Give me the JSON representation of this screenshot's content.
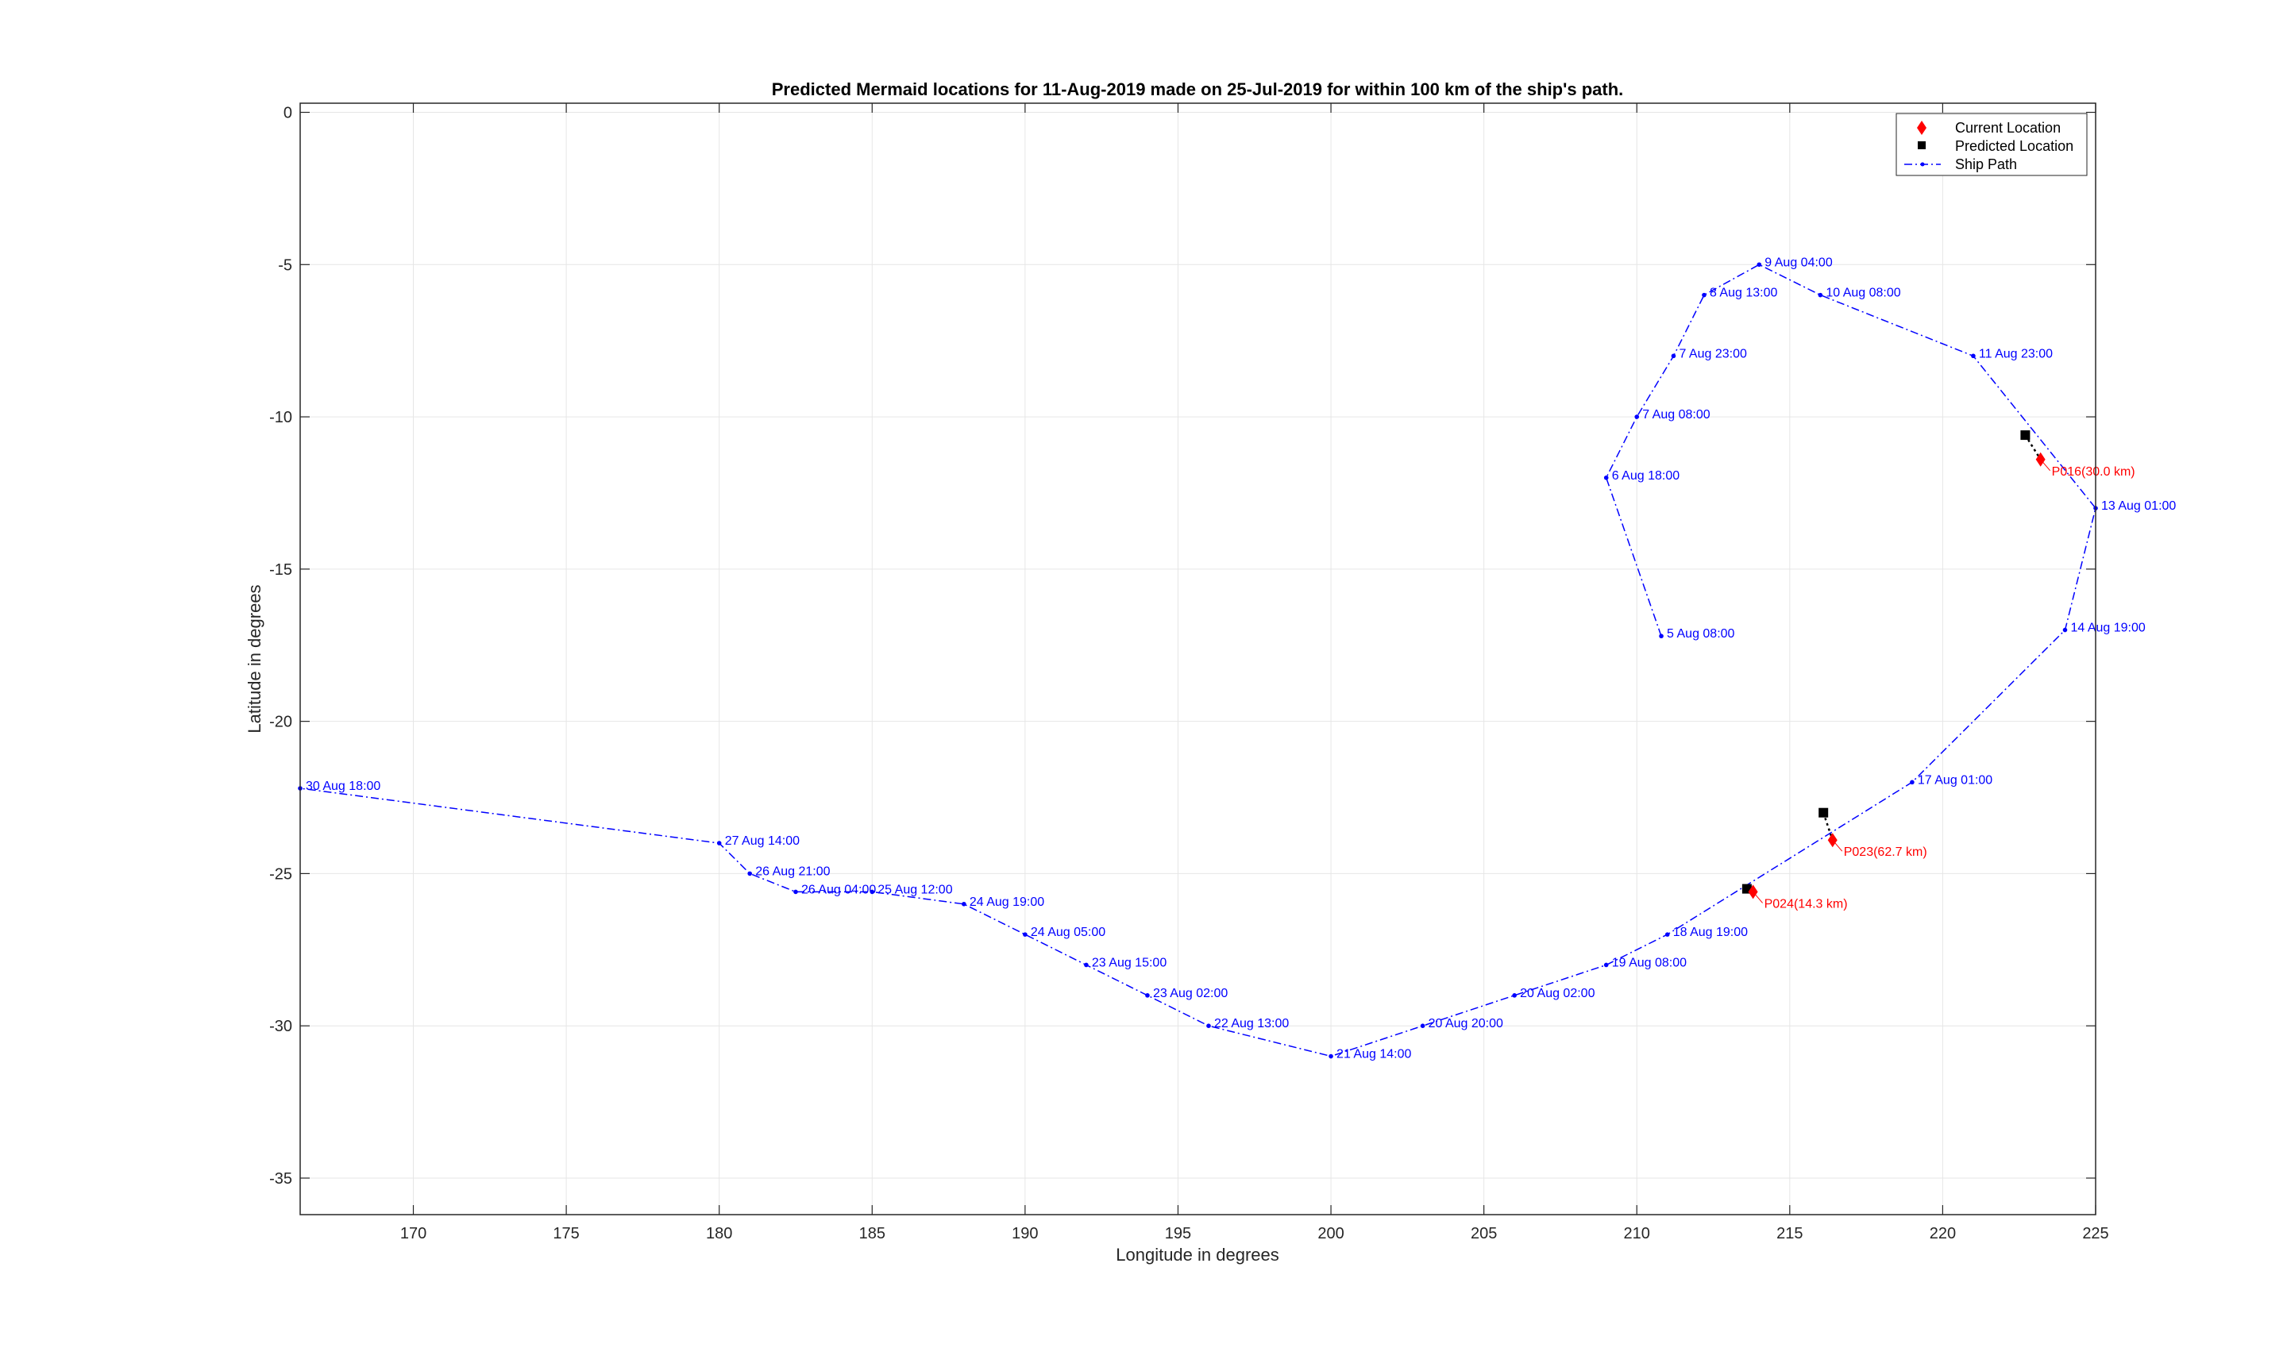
{
  "chart_data": {
    "type": "scatter",
    "title": "Predicted Mermaid locations for 11-Aug-2019 made on 25-Jul-2019 for within 100 km of the ship's path.",
    "xlabel": "Longitude in degrees",
    "ylabel": "Latitude in degrees",
    "xlim": [
      166.3,
      225
    ],
    "ylim": [
      -36.2,
      0.3
    ],
    "xticks": [
      170,
      175,
      180,
      185,
      190,
      195,
      200,
      205,
      210,
      215,
      220,
      225
    ],
    "yticks": [
      0,
      -5,
      -10,
      -15,
      -20,
      -25,
      -30,
      -35
    ],
    "grid": true,
    "legend_position": "top-right",
    "legend": [
      {
        "label": "Current Location",
        "marker": "diamond",
        "color": "#ff0000"
      },
      {
        "label": "Predicted Location",
        "marker": "square",
        "color": "#000000"
      },
      {
        "label": "Ship Path",
        "marker": "dot-dash-line",
        "color": "#0000ff"
      }
    ],
    "colors": {
      "ship_path": "#0000ff",
      "current": "#ff0000",
      "predicted": "#000000",
      "grid": "#e6e6e6"
    },
    "ship_path": [
      {
        "x": 210.8,
        "y": -17.2,
        "label": "5 Aug 08:00"
      },
      {
        "x": 209.0,
        "y": -12.0,
        "label": "6 Aug 18:00"
      },
      {
        "x": 210.0,
        "y": -10.0,
        "label": "7 Aug 08:00"
      },
      {
        "x": 211.2,
        "y": -8.0,
        "label": "7 Aug 23:00"
      },
      {
        "x": 212.2,
        "y": -6.0,
        "label": "8 Aug 13:00"
      },
      {
        "x": 214.0,
        "y": -5.0,
        "label": "9 Aug 04:00"
      },
      {
        "x": 216.0,
        "y": -6.0,
        "label": "10 Aug 08:00"
      },
      {
        "x": 221.0,
        "y": -8.0,
        "label": "11 Aug 23:00"
      },
      {
        "x": 225.0,
        "y": -13.0,
        "label": "13 Aug 01:00"
      },
      {
        "x": 224.0,
        "y": -17.0,
        "label": "14 Aug 19:00"
      },
      {
        "x": 219.0,
        "y": -22.0,
        "label": "17 Aug 01:00"
      },
      {
        "x": 211.0,
        "y": -27.0,
        "label": "18 Aug 19:00"
      },
      {
        "x": 209.0,
        "y": -28.0,
        "label": "19 Aug 08:00"
      },
      {
        "x": 206.0,
        "y": -29.0,
        "label": "20 Aug 02:00"
      },
      {
        "x": 203.0,
        "y": -30.0,
        "label": "20 Aug 20:00"
      },
      {
        "x": 200.0,
        "y": -31.0,
        "label": "21 Aug 14:00"
      },
      {
        "x": 196.0,
        "y": -30.0,
        "label": "22 Aug 13:00"
      },
      {
        "x": 194.0,
        "y": -29.0,
        "label": "23 Aug 02:00"
      },
      {
        "x": 192.0,
        "y": -28.0,
        "label": "23 Aug 15:00"
      },
      {
        "x": 190.0,
        "y": -27.0,
        "label": "24 Aug 05:00"
      },
      {
        "x": 188.0,
        "y": -26.0,
        "label": "24 Aug 19:00"
      },
      {
        "x": 185.0,
        "y": -25.6,
        "label": "25 Aug 12:00"
      },
      {
        "x": 182.5,
        "y": -25.6,
        "label": "26 Aug 04:00"
      },
      {
        "x": 181.0,
        "y": -25.0,
        "label": "26 Aug 21:00"
      },
      {
        "x": 180.0,
        "y": -24.0,
        "label": "27 Aug 14:00"
      },
      {
        "x": 166.3,
        "y": -22.2,
        "label": "30 Aug 18:00"
      }
    ],
    "floats": [
      {
        "name": "P016",
        "distance_km": 30.0,
        "label": "P016(30.0 km)",
        "current": {
          "x": 223.2,
          "y": -11.4
        },
        "predicted": {
          "x": 222.7,
          "y": -10.6
        }
      },
      {
        "name": "P023",
        "distance_km": 62.7,
        "label": "P023(62.7 km)",
        "current": {
          "x": 216.4,
          "y": -23.9
        },
        "predicted": {
          "x": 216.1,
          "y": -23.0
        }
      },
      {
        "name": "P024",
        "distance_km": 14.3,
        "label": "P024(14.3 km)",
        "current": {
          "x": 213.8,
          "y": -25.6
        },
        "predicted": {
          "x": 213.6,
          "y": -25.5
        }
      }
    ]
  }
}
